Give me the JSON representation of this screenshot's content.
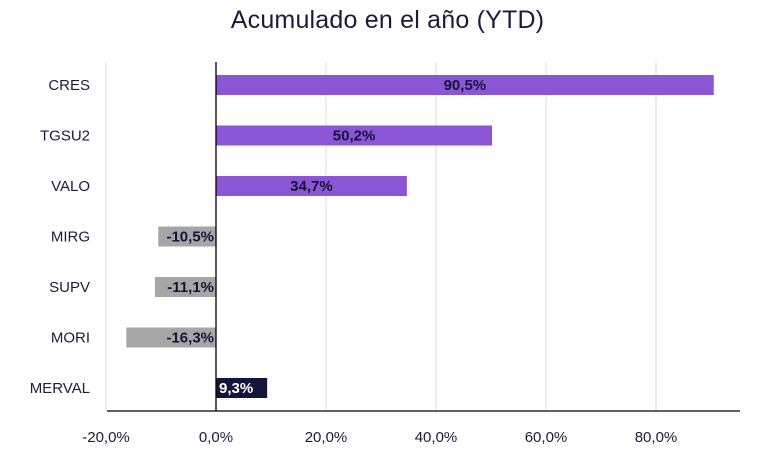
{
  "chart_data": {
    "type": "bar",
    "orientation": "horizontal",
    "title": "Acumulado en el año (YTD)",
    "categories": [
      "CRES",
      "TGSU2",
      "VALO",
      "MIRG",
      "SUPV",
      "MORI",
      "MERVAL"
    ],
    "values": [
      90.5,
      50.2,
      34.7,
      -10.5,
      -11.1,
      -16.3,
      9.3
    ],
    "data_labels": [
      "90,5%",
      "50,2%",
      "34,7%",
      "-10,5%",
      "-11,1%",
      "-16,3%",
      "9,3%"
    ],
    "xlim": [
      -20,
      95
    ],
    "x_ticks": [
      -20,
      0,
      20,
      40,
      60,
      80
    ],
    "x_tick_labels": [
      "-20,0%",
      "0,0%",
      "20,0%",
      "40,0%",
      "60,0%",
      "80,0%"
    ],
    "grid": "vertical",
    "legend": "none",
    "colors": {
      "positive": "#8b55d6",
      "negative": "#a6a6a6",
      "benchmark": "#13163a",
      "label_dark": "#13163a",
      "label_light": "#ffffff",
      "grid": "#d9d9d9",
      "axis": "#000000"
    },
    "bar_color_roles": [
      "positive",
      "positive",
      "positive",
      "negative",
      "negative",
      "negative",
      "benchmark"
    ]
  }
}
